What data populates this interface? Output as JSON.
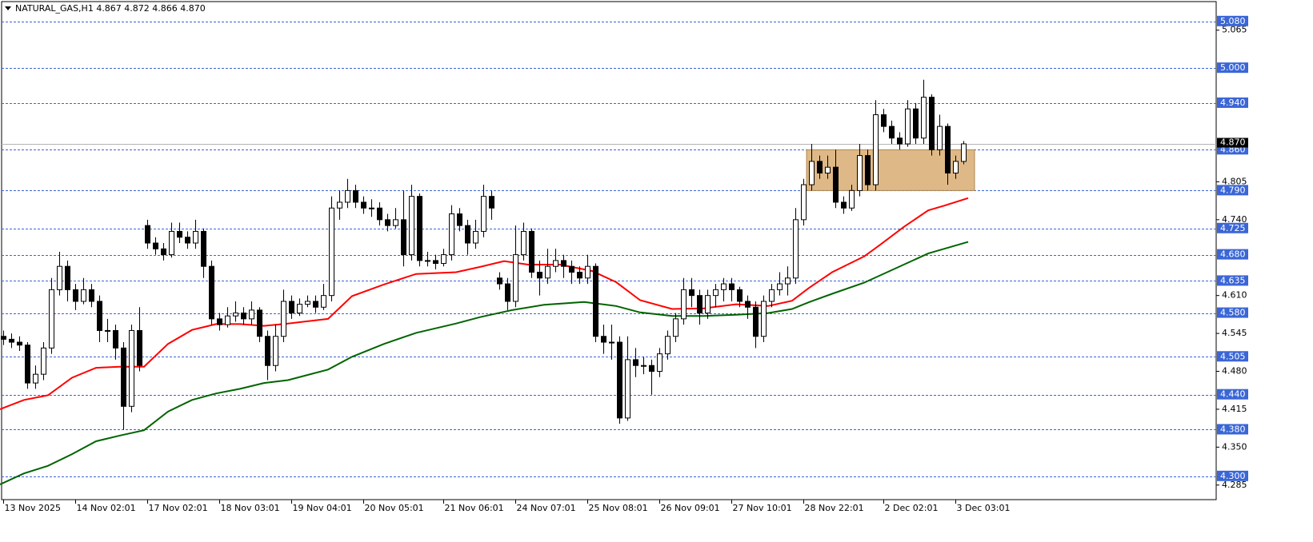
{
  "chart_data": {
    "type": "candlestick",
    "title": "NATURAL_GAS,H1  4.867 4.872 4.866 4.870",
    "xlim": [
      -0.4,
      151.6
    ],
    "ylim": [
      4.26,
      5.114
    ],
    "xticks": [
      {
        "value": 0,
        "label": "13 Nov 2025"
      },
      {
        "value": 9,
        "label": "14 Nov 02:01"
      },
      {
        "value": 18,
        "label": "17 Nov 02:01"
      },
      {
        "value": 27,
        "label": "18 Nov 03:01"
      },
      {
        "value": 36,
        "label": "19 Nov 04:01"
      },
      {
        "value": 45,
        "label": "20 Nov 05:01"
      },
      {
        "value": 55,
        "label": "21 Nov 06:01"
      },
      {
        "value": 64,
        "label": "24 Nov 07:01"
      },
      {
        "value": 73,
        "label": "25 Nov 08:01"
      },
      {
        "value": 82,
        "label": "26 Nov 09:01"
      },
      {
        "value": 91,
        "label": "27 Nov 10:01"
      },
      {
        "value": 100,
        "label": "28 Nov 22:01"
      },
      {
        "value": 110,
        "label": "2 Dec 02:01"
      },
      {
        "value": 119,
        "label": "3 Dec 03:01"
      }
    ],
    "yticks": [
      5.065,
      4.805,
      {
        "value": 4.74,
        "label": "4.740"
      },
      {
        "value": 4.61,
        "label": "4.610"
      },
      4.545,
      {
        "value": 4.48,
        "label": "4.480"
      },
      4.415,
      {
        "value": 4.35,
        "label": "4.350"
      },
      4.285
    ],
    "levels": {
      "color": "#3a66d6",
      "values": [
        {
          "value": 5.08,
          "label": "5.080"
        },
        {
          "value": 5.0,
          "label": "5.000"
        },
        {
          "value": 4.94,
          "label": "4.940"
        },
        {
          "value": 4.86,
          "label": "4.860"
        },
        {
          "value": 4.79,
          "label": "4.790"
        },
        4.725,
        {
          "value": 4.68,
          "label": "4.680"
        },
        4.635,
        {
          "value": 4.58,
          "label": "4.580"
        },
        4.505,
        {
          "value": 4.44,
          "label": "4.440"
        },
        {
          "value": 4.38,
          "label": "4.380"
        },
        {
          "value": 4.3,
          "label": "4.300"
        }
      ]
    },
    "last_price": {
      "value": 4.87,
      "label": "4.870"
    },
    "zone": {
      "x": [
        100.4,
        121.4
      ],
      "y": [
        4.79,
        4.86
      ],
      "color": "#deb887"
    },
    "up_color": "#ffffff",
    "down_color": "#000000",
    "candles": [
      [
        4.54,
        4.55,
        4.525,
        4.535
      ],
      [
        4.535,
        4.545,
        4.52,
        4.53
      ],
      [
        4.53,
        4.54,
        4.515,
        4.525
      ],
      [
        4.525,
        4.53,
        4.45,
        4.46
      ],
      [
        4.46,
        4.49,
        4.45,
        4.475
      ],
      [
        4.475,
        4.53,
        4.465,
        4.52
      ],
      [
        4.52,
        4.64,
        4.51,
        4.62
      ],
      [
        4.62,
        4.685,
        4.61,
        4.66
      ],
      [
        4.66,
        4.67,
        4.6,
        4.62
      ],
      [
        4.62,
        4.63,
        4.585,
        4.6
      ],
      [
        4.6,
        4.64,
        4.595,
        4.62
      ],
      [
        4.62,
        4.63,
        4.59,
        4.6
      ],
      [
        4.6,
        4.61,
        4.53,
        4.55
      ],
      [
        4.55,
        4.57,
        4.53,
        4.55
      ],
      [
        4.55,
        4.56,
        4.5,
        4.52
      ],
      [
        4.52,
        4.53,
        4.38,
        4.42
      ],
      [
        4.42,
        4.56,
        4.41,
        4.55
      ],
      [
        4.55,
        4.59,
        4.48,
        4.49
      ],
      [
        4.73,
        4.74,
        4.69,
        4.7
      ],
      [
        4.7,
        4.71,
        4.68,
        4.69
      ],
      [
        4.69,
        4.7,
        4.67,
        4.68
      ],
      [
        4.68,
        4.735,
        4.675,
        4.72
      ],
      [
        4.72,
        4.735,
        4.7,
        4.71
      ],
      [
        4.71,
        4.72,
        4.69,
        4.7
      ],
      [
        4.7,
        4.74,
        4.69,
        4.72
      ],
      [
        4.72,
        4.725,
        4.64,
        4.66
      ],
      [
        4.66,
        4.67,
        4.56,
        4.57
      ],
      [
        4.57,
        4.58,
        4.55,
        4.56
      ],
      [
        4.56,
        4.59,
        4.555,
        4.575
      ],
      [
        4.575,
        4.6,
        4.565,
        4.58
      ],
      [
        4.58,
        4.59,
        4.56,
        4.57
      ],
      [
        4.57,
        4.6,
        4.56,
        4.585
      ],
      [
        4.585,
        4.59,
        4.53,
        4.54
      ],
      [
        4.54,
        4.55,
        4.465,
        4.49
      ],
      [
        4.49,
        4.56,
        4.48,
        4.54
      ],
      [
        4.54,
        4.62,
        4.53,
        4.6
      ],
      [
        4.6,
        4.61,
        4.57,
        4.58
      ],
      [
        4.58,
        4.605,
        4.575,
        4.595
      ],
      [
        4.595,
        4.61,
        4.59,
        4.6
      ],
      [
        4.6,
        4.61,
        4.58,
        4.59
      ],
      [
        4.59,
        4.63,
        4.585,
        4.61
      ],
      [
        4.61,
        4.78,
        4.6,
        4.76
      ],
      [
        4.76,
        4.79,
        4.74,
        4.77
      ],
      [
        4.77,
        4.81,
        4.76,
        4.79
      ],
      [
        4.79,
        4.8,
        4.76,
        4.77
      ],
      [
        4.77,
        4.78,
        4.75,
        4.76
      ],
      [
        4.76,
        4.775,
        4.745,
        4.76
      ],
      [
        4.76,
        4.77,
        4.73,
        4.74
      ],
      [
        4.74,
        4.75,
        4.72,
        4.73
      ],
      [
        4.73,
        4.76,
        4.725,
        4.74
      ],
      [
        4.74,
        4.79,
        4.66,
        4.68
      ],
      [
        4.68,
        4.8,
        4.67,
        4.78
      ],
      [
        4.78,
        4.785,
        4.66,
        4.67
      ],
      [
        4.67,
        4.685,
        4.66,
        4.67
      ],
      [
        4.67,
        4.68,
        4.655,
        4.665
      ],
      [
        4.665,
        4.69,
        4.66,
        4.68
      ],
      [
        4.68,
        4.765,
        4.67,
        4.75
      ],
      [
        4.75,
        4.76,
        4.72,
        4.73
      ],
      [
        4.73,
        4.74,
        4.68,
        4.7
      ],
      [
        4.7,
        4.74,
        4.69,
        4.72
      ],
      [
        4.72,
        4.8,
        4.71,
        4.78
      ],
      [
        4.78,
        4.79,
        4.74,
        4.76
      ],
      [
        4.64,
        4.65,
        4.62,
        4.63
      ],
      [
        4.63,
        4.64,
        4.585,
        4.6
      ],
      [
        4.6,
        4.73,
        4.59,
        4.68
      ],
      [
        4.68,
        4.735,
        4.67,
        4.72
      ],
      [
        4.72,
        4.725,
        4.64,
        4.65
      ],
      [
        4.65,
        4.67,
        4.61,
        4.64
      ],
      [
        4.64,
        4.69,
        4.63,
        4.66
      ],
      [
        4.66,
        4.69,
        4.65,
        4.67
      ],
      [
        4.67,
        4.68,
        4.64,
        4.66
      ],
      [
        4.66,
        4.67,
        4.63,
        4.65
      ],
      [
        4.65,
        4.66,
        4.63,
        4.64
      ],
      [
        4.64,
        4.68,
        4.63,
        4.66
      ],
      [
        4.66,
        4.665,
        4.53,
        4.54
      ],
      [
        4.54,
        4.56,
        4.51,
        4.53
      ],
      [
        4.53,
        4.56,
        4.5,
        4.53
      ],
      [
        4.53,
        4.54,
        4.39,
        4.4
      ],
      [
        4.4,
        4.54,
        4.395,
        4.5
      ],
      [
        4.5,
        4.52,
        4.47,
        4.49
      ],
      [
        4.49,
        4.505,
        4.475,
        4.49
      ],
      [
        4.49,
        4.5,
        4.44,
        4.48
      ],
      [
        4.48,
        4.52,
        4.47,
        4.51
      ],
      [
        4.51,
        4.55,
        4.5,
        4.54
      ],
      [
        4.54,
        4.58,
        4.53,
        4.57
      ],
      [
        4.57,
        4.64,
        4.56,
        4.62
      ],
      [
        4.62,
        4.64,
        4.59,
        4.61
      ],
      [
        4.61,
        4.62,
        4.56,
        4.58
      ],
      [
        4.58,
        4.62,
        4.57,
        4.61
      ],
      [
        4.61,
        4.63,
        4.59,
        4.62
      ],
      [
        4.62,
        4.64,
        4.6,
        4.63
      ],
      [
        4.63,
        4.64,
        4.6,
        4.62
      ],
      [
        4.62,
        4.625,
        4.59,
        4.6
      ],
      [
        4.6,
        4.61,
        4.57,
        4.59
      ],
      [
        4.59,
        4.6,
        4.52,
        4.54
      ],
      [
        4.54,
        4.61,
        4.53,
        4.6
      ],
      [
        4.6,
        4.63,
        4.59,
        4.62
      ],
      [
        4.62,
        4.65,
        4.61,
        4.63
      ],
      [
        4.63,
        4.66,
        4.61,
        4.64
      ],
      [
        4.64,
        4.76,
        4.63,
        4.74
      ],
      [
        4.74,
        4.81,
        4.73,
        4.8
      ],
      [
        4.8,
        4.87,
        4.79,
        4.84
      ],
      [
        4.84,
        4.85,
        4.81,
        4.82
      ],
      [
        4.82,
        4.85,
        4.81,
        4.83
      ],
      [
        4.83,
        4.86,
        4.76,
        4.77
      ],
      [
        4.77,
        4.78,
        4.75,
        4.76
      ],
      [
        4.76,
        4.8,
        4.755,
        4.79
      ],
      [
        4.79,
        4.87,
        4.78,
        4.85
      ],
      [
        4.85,
        4.86,
        4.79,
        4.8
      ],
      [
        4.8,
        4.945,
        4.79,
        4.92
      ],
      [
        4.92,
        4.93,
        4.89,
        4.9
      ],
      [
        4.9,
        4.91,
        4.87,
        4.88
      ],
      [
        4.88,
        4.89,
        4.86,
        4.87
      ],
      [
        4.87,
        4.945,
        4.865,
        4.93
      ],
      [
        4.93,
        4.94,
        4.87,
        4.88
      ],
      [
        4.88,
        4.98,
        4.87,
        4.95
      ],
      [
        4.95,
        4.955,
        4.85,
        4.86
      ],
      [
        4.86,
        4.92,
        4.85,
        4.9
      ],
      [
        4.9,
        4.905,
        4.8,
        4.82
      ],
      [
        4.82,
        4.85,
        4.81,
        4.84
      ],
      [
        4.84,
        4.875,
        4.835,
        4.87
      ]
    ],
    "lines": [
      {
        "color": "#ff0000",
        "x": [
          -0.4,
          2.6,
          5.6,
          8.6,
          11.6,
          14.6,
          17.6,
          20.6,
          23.6,
          26.6,
          29.6,
          32.6,
          35.6,
          40.6,
          43.6,
          47.6,
          51.6,
          56.6,
          59.6,
          62.6,
          65.6,
          69.6,
          73.6,
          76.6,
          79.6,
          83.6,
          87.6,
          91.6,
          95.6,
          98.6,
          100.6,
          103.6,
          107.6,
          109.6,
          112.6,
          115.6,
          117.6,
          120.6
        ],
        "values": [
          4.415,
          4.431,
          4.439,
          4.469,
          4.486,
          4.488,
          4.488,
          4.527,
          4.551,
          4.561,
          4.561,
          4.558,
          4.562,
          4.57,
          4.609,
          4.629,
          4.647,
          4.65,
          4.659,
          4.669,
          4.663,
          4.663,
          4.652,
          4.633,
          4.602,
          4.587,
          4.588,
          4.595,
          4.592,
          4.601,
          4.622,
          4.65,
          4.677,
          4.697,
          4.728,
          4.756,
          4.764,
          4.777
        ]
      },
      {
        "color": "#006400",
        "x": [
          -0.4,
          2.6,
          5.6,
          8.6,
          11.6,
          14.6,
          17.6,
          20.6,
          23.6,
          26.6,
          29.6,
          32.6,
          35.6,
          40.6,
          43.6,
          47.6,
          51.6,
          56.6,
          59.6,
          63.6,
          67.6,
          72.6,
          76.6,
          79.6,
          83.6,
          87.6,
          91.6,
          95.6,
          98.6,
          100.6,
          103.6,
          107.6,
          111.6,
          115.6,
          120.6
        ],
        "values": [
          4.286,
          4.305,
          4.318,
          4.338,
          4.36,
          4.37,
          4.379,
          4.411,
          4.431,
          4.442,
          4.45,
          4.46,
          4.465,
          4.483,
          4.505,
          4.527,
          4.546,
          4.562,
          4.573,
          4.585,
          4.594,
          4.599,
          4.592,
          4.581,
          4.575,
          4.575,
          4.577,
          4.58,
          4.587,
          4.598,
          4.613,
          4.632,
          4.657,
          4.682,
          4.702
        ]
      }
    ]
  }
}
